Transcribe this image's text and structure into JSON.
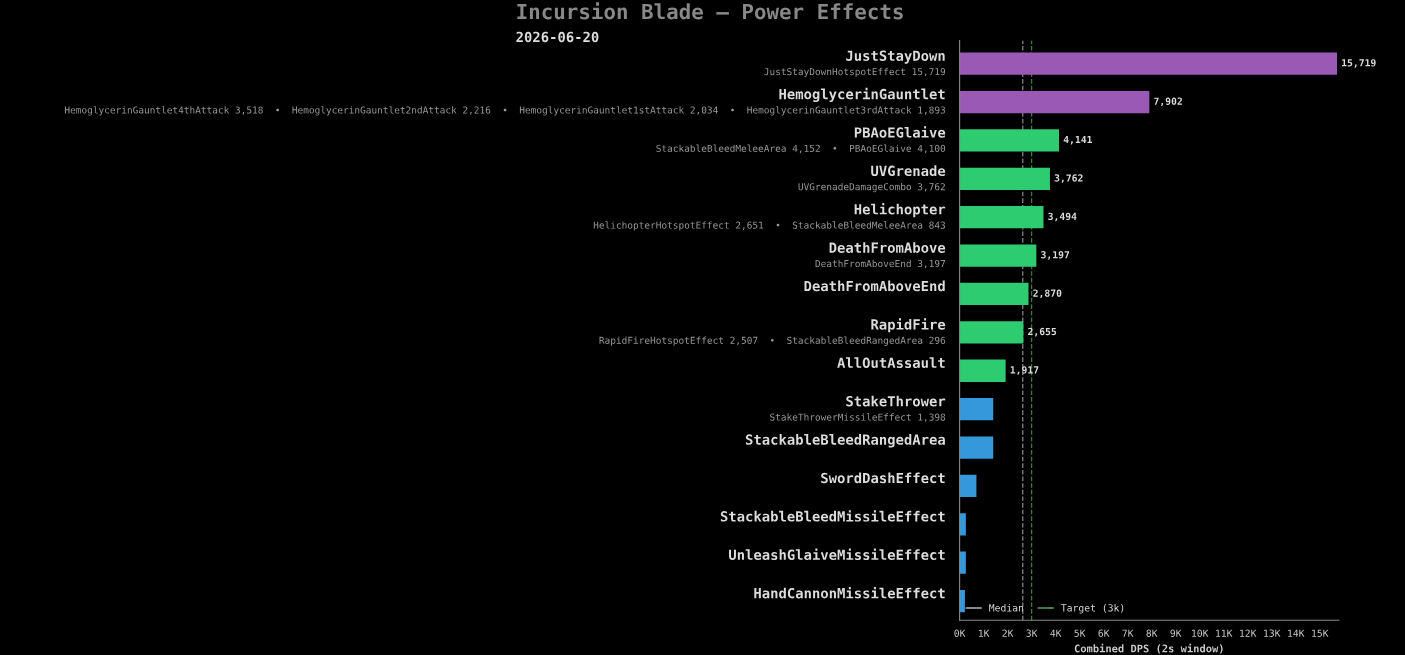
{
  "chart_data": {
    "type": "bar",
    "orientation": "horizontal",
    "title": "Incursion Blade — Power Effects",
    "subtitle": "2026-06-20",
    "xlabel": "Combined DPS (2s window)",
    "categories": [
      "JustStayDown",
      "HemoglycerinGauntlet",
      "PBAoEGlaive",
      "UVGrenade",
      "Helichopter",
      "DeathFromAbove",
      "DeathFromAboveEnd",
      "RapidFire",
      "AllOutAssault",
      "StakeThrower",
      "StackableBleedRangedArea",
      "SwordDashEffect",
      "StackableBleedMissileEffect",
      "UnleashGlaiveMissileEffect",
      "HandCannonMissileEffect"
    ],
    "values": [
      15719,
      7902,
      4141,
      3762,
      3494,
      3197,
      2870,
      2655,
      1917,
      1400,
      1400,
      700,
      260,
      260,
      220
    ],
    "colors": [
      "#9b59b6",
      "#9b59b6",
      "#2ecc71",
      "#2ecc71",
      "#2ecc71",
      "#2ecc71",
      "#2ecc71",
      "#2ecc71",
      "#2ecc71",
      "#3498db",
      "#3498db",
      "#3498db",
      "#3498db",
      "#3498db",
      "#3498db"
    ],
    "value_labels": [
      "15,719",
      "7,902",
      "4,141",
      "3,762",
      "3,494",
      "3,197",
      "2,870",
      "2,655",
      "1,917",
      null,
      null,
      null,
      null,
      null,
      null
    ],
    "annotations": [
      "JustStayDownHotspotEffect 15,719",
      "HemoglycerinGauntlet4thAttack 3,518  •  HemoglycerinGauntlet2ndAttack 2,216  •  HemoglycerinGauntlet1stAttack 2,034  •  HemoglycerinGauntlet3rdAttack 1,893",
      "StackableBleedMeleeArea 4,152  •  PBAoEGlaive 4,100",
      "UVGrenadeDamageCombo 3,762",
      "HelichopterHotspotEffect 2,651  •  StackableBleedMeleeArea 843",
      "DeathFromAboveEnd 3,197",
      null,
      "RapidFireHotspotEffect 2,507  •  StackableBleedRangedArea 296",
      null,
      "StakeThrowerMissileEffect 1,398"
    ],
    "ref_lines": [
      {
        "axis": "x",
        "value": 2630,
        "label": "Median",
        "color": "#888888",
        "line_style": "dashed"
      },
      {
        "axis": "x",
        "value": 3000,
        "label": "Target (3k)",
        "color": "#3f7a3f",
        "line_style": "dashed"
      }
    ],
    "xlim": [
      0,
      15800
    ],
    "xticks": [
      {
        "value": 0,
        "label": "0K"
      },
      {
        "value": 1000,
        "label": "1K"
      },
      {
        "value": 2000,
        "label": "2K"
      },
      {
        "value": 3000,
        "label": "3K"
      },
      {
        "value": 4000,
        "label": "4K"
      },
      {
        "value": 5000,
        "label": "5K"
      },
      {
        "value": 6000,
        "label": "6K"
      },
      {
        "value": 7000,
        "label": "7K"
      },
      {
        "value": 8000,
        "label": "8K"
      },
      {
        "value": 9000,
        "label": "9K"
      },
      {
        "value": 10000,
        "label": "10K"
      },
      {
        "value": 11000,
        "label": "11K"
      },
      {
        "value": 12000,
        "label": "12K"
      },
      {
        "value": 13000,
        "label": "13K"
      },
      {
        "value": 14000,
        "label": "14K"
      },
      {
        "value": 15000,
        "label": "15K"
      }
    ],
    "grid": false,
    "legend": "bottom left"
  }
}
